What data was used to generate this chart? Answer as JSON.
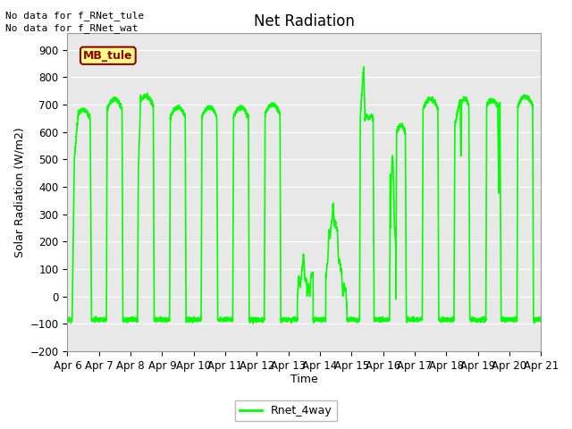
{
  "title": "Net Radiation",
  "xlabel": "Time",
  "ylabel": "Solar Radiation (W/m2)",
  "ylim": [
    -200,
    960
  ],
  "yticks": [
    -200,
    -100,
    0,
    100,
    200,
    300,
    400,
    500,
    600,
    700,
    800,
    900
  ],
  "line_color": "#00FF00",
  "line_width": 1.2,
  "legend_label": "Rnet_4way",
  "annotation1": "No data for f_RNet_tule",
  "annotation2": "No data for f_RNet_wat",
  "box_label": "MB_tule",
  "box_facecolor": "#FFFF88",
  "box_edgecolor": "#8B0000",
  "background_color": "#E8E8E8",
  "fig_background": "#FFFFFF",
  "xtick_labels": [
    "Apr 6",
    "Apr 7",
    "Apr 8",
    "Apr 9",
    "Apr 10",
    "Apr 11",
    "Apr 12",
    "Apr 13",
    "Apr 14",
    "Apr 15",
    "Apr 16",
    "Apr 17",
    "Apr 18",
    "Apr 19",
    "Apr 20",
    "Apr 21"
  ],
  "start_day": 0,
  "end_day": 15,
  "night_val": -85,
  "grid_color": "#FFFFFF",
  "title_fontsize": 12,
  "axis_fontsize": 9,
  "tick_fontsize": 8.5
}
